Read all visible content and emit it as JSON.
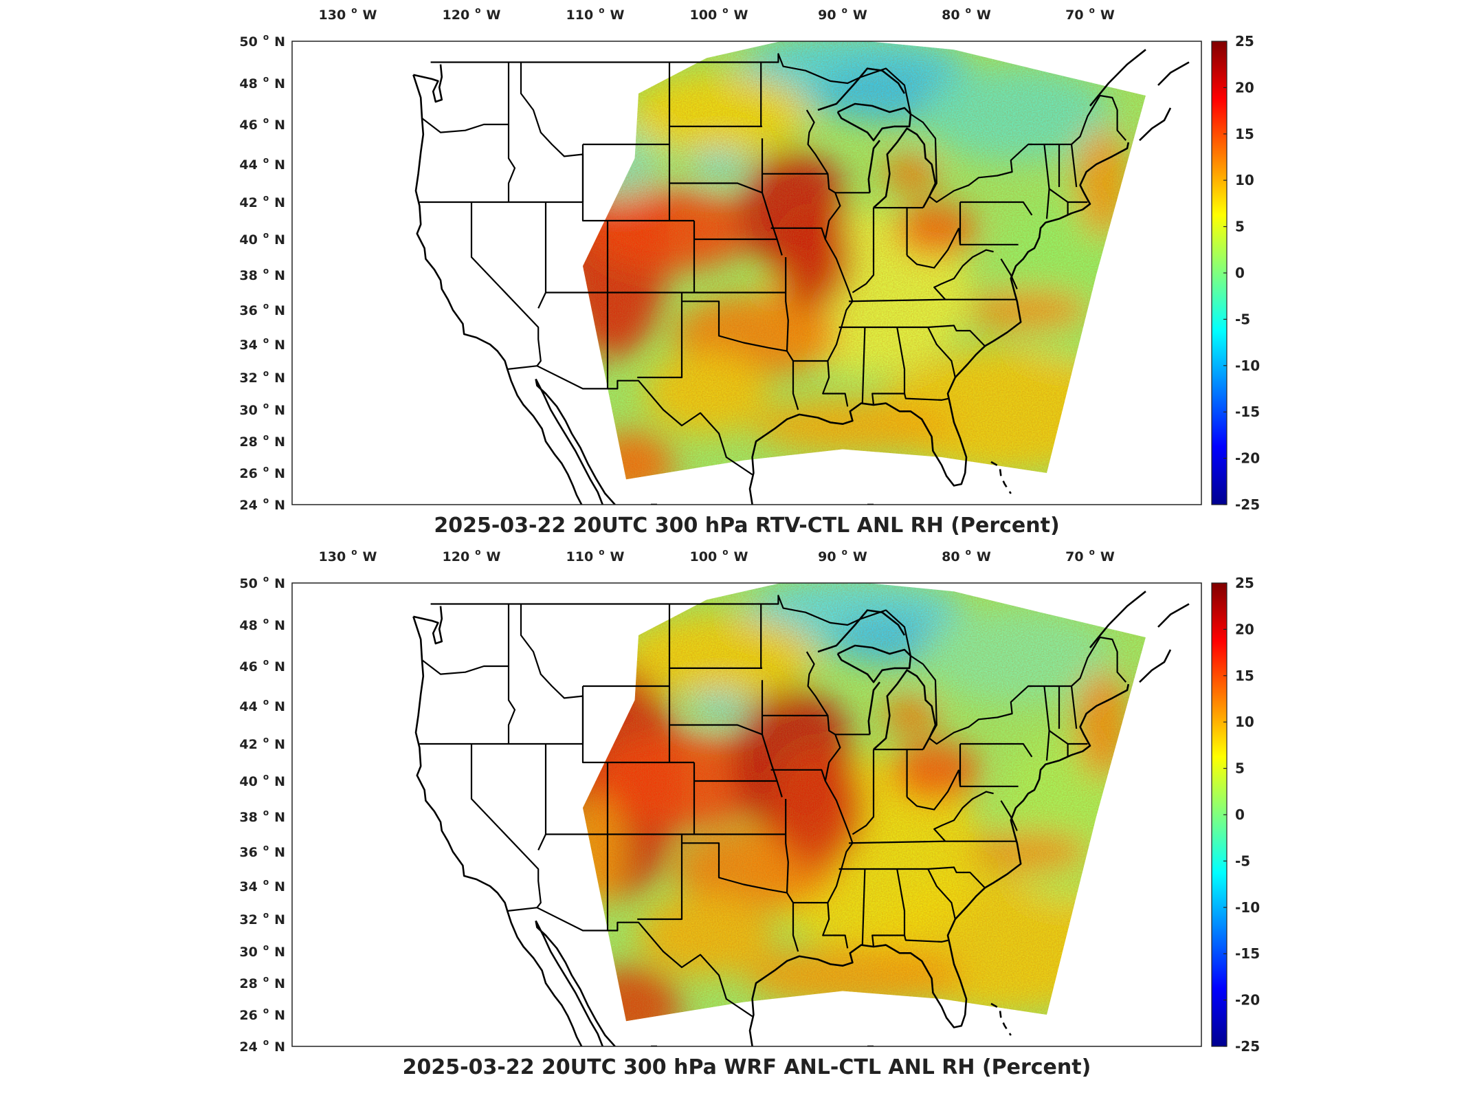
{
  "panels": [
    {
      "title": "2025-03-22 20UTC 300 hPa RTV-CTL ANL RH (Percent)",
      "variant": 0
    },
    {
      "title": "2025-03-22 20UTC 300 hPa WRF ANL-CTL ANL RH (Percent)",
      "variant": 1
    }
  ],
  "lon_ticks": [
    "130",
    "120",
    "110",
    "100",
    "90",
    "80",
    "70"
  ],
  "lon_values": [
    130,
    120,
    110,
    100,
    90,
    80,
    70
  ],
  "lon_hemisphere": "W",
  "lat_ticks": [
    "50",
    "48",
    "46",
    "44",
    "42",
    "40",
    "38",
    "36",
    "34",
    "32",
    "30",
    "28",
    "26",
    "24"
  ],
  "lat_values": [
    50,
    48,
    46,
    44,
    42,
    40,
    38,
    36,
    34,
    32,
    30,
    28,
    26,
    24
  ],
  "lat_hemisphere": "N",
  "degree_symbol": "o",
  "colorbar": {
    "ticks": [
      "25",
      "20",
      "15",
      "10",
      "5",
      "0",
      "-5",
      "-10",
      "-15",
      "-20",
      "-25"
    ],
    "min": -25,
    "max": 25,
    "colormap": "jet",
    "colors": [
      "#00008f",
      "#0000ff",
      "#007fff",
      "#00ffff",
      "#7fff7f",
      "#ffff00",
      "#ff7f00",
      "#ff0000",
      "#800000"
    ]
  }
}
